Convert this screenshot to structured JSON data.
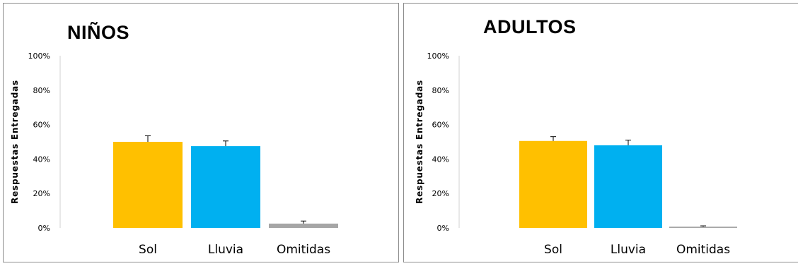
{
  "chart_data": [
    {
      "type": "bar",
      "title": "NIÑOS",
      "ylabel": "Respuestas Entregadas",
      "xlabel": "",
      "categories": [
        "Sol",
        "Lluvia",
        "Omitidas"
      ],
      "values": [
        50,
        47.5,
        2.5
      ],
      "error_bars": [
        3.5,
        3,
        1.5
      ],
      "ylim": [
        0,
        100
      ],
      "yticks": [
        "0%",
        "20%",
        "40%",
        "60%",
        "80%",
        "100%"
      ],
      "grid": false,
      "legend": "none",
      "colors": [
        "#FFC000",
        "#00B0F0",
        "#A6A6A6"
      ]
    },
    {
      "type": "bar",
      "title": "ADULTOS",
      "ylabel": "Respuestas Entregadas",
      "xlabel": "",
      "categories": [
        "Sol",
        "Lluvia",
        "Omitidas"
      ],
      "values": [
        50.5,
        48,
        0.7
      ],
      "error_bars": [
        2.5,
        3,
        0.5
      ],
      "ylim": [
        0,
        100
      ],
      "yticks": [
        "0%",
        "20%",
        "40%",
        "60%",
        "80%",
        "100%"
      ],
      "grid": false,
      "legend": "none",
      "colors": [
        "#FFC000",
        "#00B0F0",
        "#A6A6A6"
      ]
    }
  ]
}
